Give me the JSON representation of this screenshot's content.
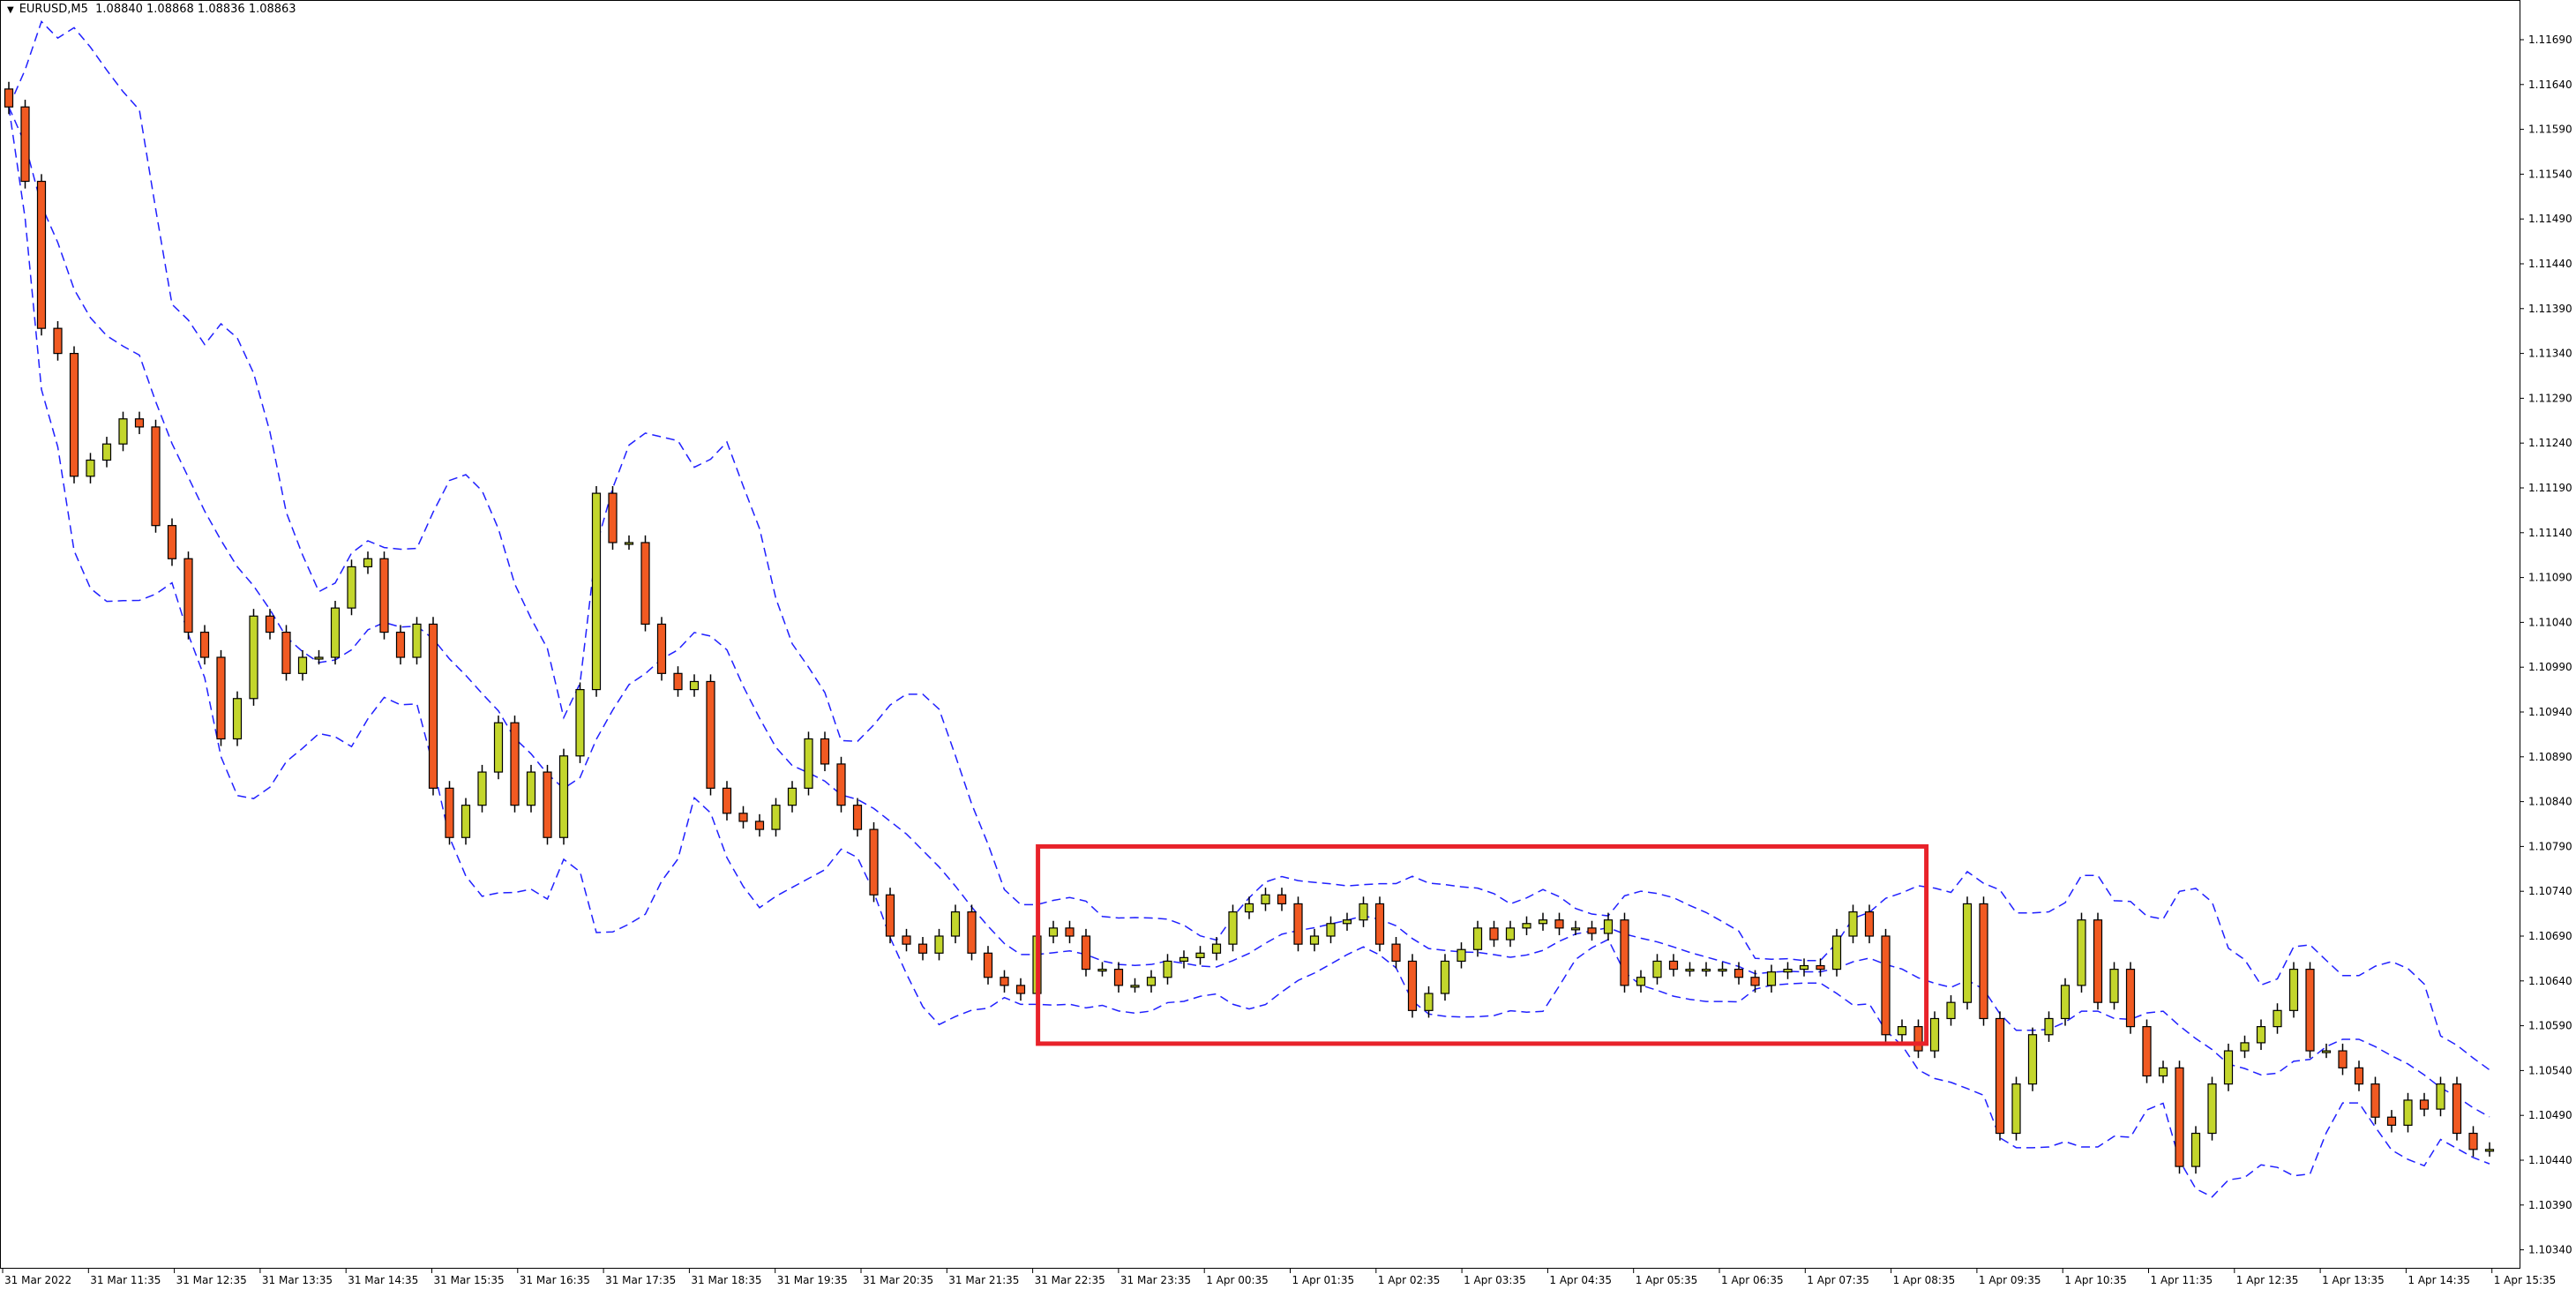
{
  "header": {
    "symbol": "EURUSD,M5",
    "ohlc": "1.08840 1.08868 1.08836 1.08863",
    "menu_icon": "triangle-down-icon"
  },
  "colors": {
    "bull": "#c3d62c",
    "bear": "#f15a22",
    "outline": "#000000",
    "bands": "#2020ff",
    "highlight": "#e8222a"
  },
  "chart_data": {
    "type": "candlestick",
    "symbol": "EURUSD",
    "timeframe": "M5",
    "indicator": "bollinger-bands",
    "ylim": [
      1.1031,
      1.1175
    ],
    "y_ticks": [
      "1.11690",
      "1.11640",
      "1.11590",
      "1.11540",
      "1.11490",
      "1.11440",
      "1.11390",
      "1.11340",
      "1.11290",
      "1.11240",
      "1.11190",
      "1.11140",
      "1.11090",
      "1.11040",
      "1.10990",
      "1.10940",
      "1.10890",
      "1.10840",
      "1.10790",
      "1.10740",
      "1.10690",
      "1.10640",
      "1.10590",
      "1.10540",
      "1.10490",
      "1.10440",
      "1.10390",
      "1.10340"
    ],
    "x_ticks": [
      "31 Mar 2022",
      "31 Mar 11:35",
      "31 Mar 12:35",
      "31 Mar 13:35",
      "31 Mar 14:35",
      "31 Mar 15:35",
      "31 Mar 16:35",
      "31 Mar 17:35",
      "31 Mar 18:35",
      "31 Mar 19:35",
      "31 Mar 20:35",
      "31 Mar 21:35",
      "31 Mar 22:35",
      "31 Mar 23:35",
      "1 Apr 00:35",
      "1 Apr 01:35",
      "1 Apr 02:35",
      "1 Apr 03:35",
      "1 Apr 04:35",
      "1 Apr 05:35",
      "1 Apr 06:35",
      "1 Apr 07:35",
      "1 Apr 08:35",
      "1 Apr 09:35",
      "1 Apr 10:35",
      "1 Apr 11:35",
      "1 Apr 12:35",
      "1 Apr 13:35",
      "1 Apr 14:35",
      "1 Apr 15:35"
    ],
    "closes": [
      1.11615,
      1.11532,
      1.11368,
      1.1134,
      1.11203,
      1.11221,
      1.11239,
      1.11267,
      1.11258,
      1.11148,
      1.11111,
      1.11029,
      1.11001,
      1.1091,
      1.10955,
      1.11047,
      1.11029,
      1.10983,
      1.11001,
      1.11001,
      1.11056,
      1.11102,
      1.11111,
      1.11029,
      1.11001,
      1.11038,
      1.10855,
      1.108,
      1.10836,
      1.10873,
      1.10928,
      1.10836,
      1.10873,
      1.108,
      1.10891,
      1.10965,
      1.11184,
      1.11129,
      1.11129,
      1.11038,
      1.10983,
      1.10965,
      1.10974,
      1.10855,
      1.10827,
      1.10818,
      1.10809,
      1.10836,
      1.10855,
      1.1091,
      1.10882,
      1.10836,
      1.10809,
      1.10736,
      1.1069,
      1.10681,
      1.10671,
      1.1069,
      1.10717,
      1.10671,
      1.10644,
      1.10635,
      1.10626,
      1.1069,
      1.10699,
      1.1069,
      1.10653,
      1.10653,
      1.10635,
      1.10635,
      1.10644,
      1.10662,
      1.10666,
      1.10671,
      1.10681,
      1.10717,
      1.10726,
      1.10736,
      1.10726,
      1.10681,
      1.1069,
      1.10704,
      1.10708,
      1.10726,
      1.10681,
      1.10662,
      1.10607,
      1.10626,
      1.10662,
      1.10675,
      1.10699,
      1.10686,
      1.10699,
      1.10704,
      1.10708,
      1.10699,
      1.10699,
      1.10693,
      1.10708,
      1.10635,
      1.10644,
      1.10662,
      1.10653,
      1.10653,
      1.10653,
      1.10653,
      1.10644,
      1.10635,
      1.1065,
      1.10653,
      1.10657,
      1.10653,
      1.1069,
      1.10717,
      1.1069,
      1.1058,
      1.10589,
      1.10562,
      1.10598,
      1.10616,
      1.10726,
      1.10598,
      1.1047,
      1.10525,
      1.1058,
      1.10598,
      1.10635,
      1.10708,
      1.10616,
      1.10653,
      1.10589,
      1.10534,
      1.10543,
      1.10433,
      1.1047,
      1.10525,
      1.10562,
      1.10571,
      1.10589,
      1.10607,
      1.10653,
      1.10562,
      1.10562,
      1.10543,
      1.10525,
      1.10488,
      1.10479,
      1.10507,
      1.10497,
      1.10525,
      1.1047,
      1.10452,
      1.10452
    ],
    "highlight_box": {
      "from": "31 Mar 22:35",
      "to": "1 Apr 08:35",
      "price_high": 1.1079,
      "price_low": 1.1057
    }
  }
}
